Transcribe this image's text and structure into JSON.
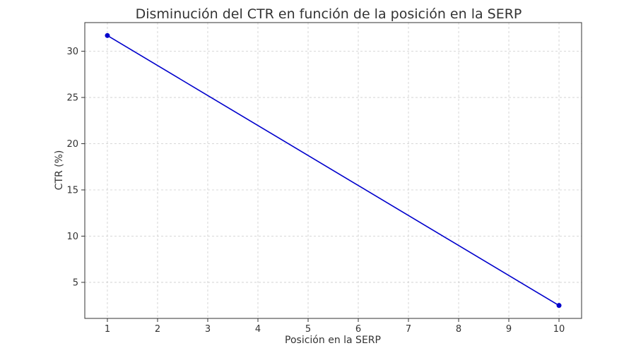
{
  "chart_data": {
    "type": "line",
    "title": "Disminución del CTR en función de la posición en la SERP",
    "xlabel": "Posición en la SERP",
    "ylabel": "CTR (%)",
    "x_ticks": [
      1,
      2,
      3,
      4,
      5,
      6,
      7,
      8,
      9,
      10
    ],
    "y_ticks": [
      5,
      10,
      15,
      20,
      25,
      30
    ],
    "xlim": [
      0.55,
      10.45
    ],
    "ylim": [
      1.1,
      33.1
    ],
    "grid": true,
    "series": [
      {
        "color": "#0000cc",
        "points": [
          {
            "x": 1,
            "y": 31.7
          },
          {
            "x": 10,
            "y": 2.5
          }
        ]
      }
    ]
  }
}
